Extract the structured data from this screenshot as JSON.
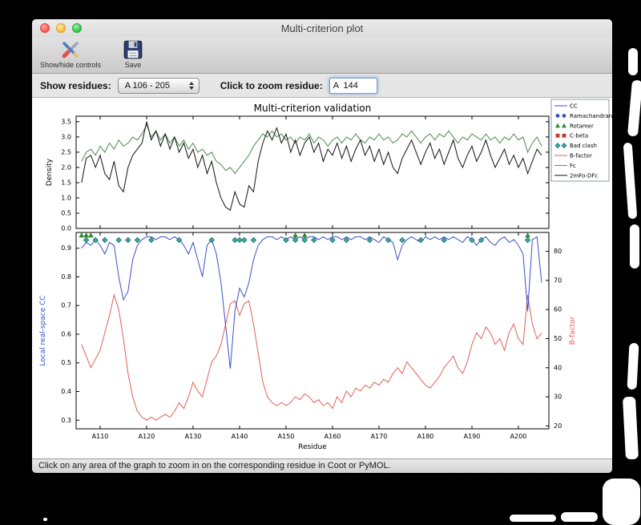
{
  "window": {
    "title": "Multi-criterion plot"
  },
  "toolbar": {
    "show_hide_label": "Show/hide controls",
    "save_label": "Save"
  },
  "controls": {
    "show_residues_label": "Show residues:",
    "residue_range_value": "A 106 - 205",
    "zoom_residue_label": "Click to zoom residue:",
    "zoom_residue_value": "A  144"
  },
  "status_bar": {
    "text": "Click on any area of the graph to zoom in on the corresponding residue in Coot or PyMOL."
  },
  "chart_data": {
    "type": "line",
    "title": "Multi-criterion validation",
    "xlabel": "Residue",
    "x_start": 106,
    "x_end": 205,
    "x_tick_values": [
      110,
      120,
      130,
      140,
      150,
      160,
      170,
      180,
      190,
      200
    ],
    "x_tick_labels": [
      "A110",
      "A120",
      "A130",
      "A140",
      "A150",
      "A160",
      "A170",
      "A180",
      "A190",
      "A200"
    ],
    "top_plot": {
      "ylabel": "Density",
      "ylim": [
        0,
        3.68
      ],
      "yticks": [
        0.0,
        0.5,
        1.0,
        1.5,
        2.0,
        2.5,
        3.0,
        3.5
      ],
      "series": [
        {
          "name": "Fc",
          "color": "#4a8c4a",
          "values": [
            2.2,
            2.5,
            2.6,
            2.4,
            2.7,
            2.5,
            2.8,
            2.6,
            2.9,
            2.7,
            2.8,
            3.0,
            2.9,
            3.1,
            3.4,
            3.0,
            3.2,
            2.9,
            3.1,
            2.8,
            3.0,
            2.7,
            2.9,
            2.6,
            2.8,
            2.5,
            2.6,
            2.4,
            2.5,
            2.2,
            2.1,
            1.9,
            2.0,
            1.8,
            2.0,
            2.2,
            2.4,
            2.7,
            2.9,
            3.1,
            3.0,
            3.2,
            3.0,
            3.1,
            2.9,
            3.0,
            2.8,
            3.0,
            2.9,
            3.1,
            2.8,
            3.0,
            2.9,
            2.7,
            2.9,
            3.0,
            2.8,
            3.0,
            2.9,
            3.1,
            2.9,
            2.8,
            3.0,
            2.9,
            3.1,
            2.9,
            3.0,
            2.8,
            2.9,
            3.1,
            3.0,
            3.2,
            3.0,
            2.8,
            3.0,
            3.1,
            2.9,
            3.1,
            3.0,
            3.2,
            3.0,
            2.8,
            3.0,
            2.9,
            3.1,
            3.0,
            2.9,
            3.1,
            2.9,
            3.0,
            2.8,
            3.0,
            2.9,
            3.1,
            2.9,
            3.0,
            2.5,
            2.8,
            3.0,
            2.7
          ]
        },
        {
          "name": "2mFo-DFc",
          "color": "#111111",
          "values": [
            1.5,
            2.3,
            2.4,
            2.0,
            2.4,
            1.8,
            1.6,
            2.2,
            1.4,
            1.2,
            2.0,
            2.4,
            2.6,
            2.8,
            3.5,
            2.9,
            3.2,
            2.7,
            3.1,
            2.6,
            3.0,
            2.5,
            2.8,
            2.3,
            2.6,
            2.0,
            2.4,
            1.8,
            2.2,
            1.5,
            1.0,
            0.7,
            0.6,
            1.2,
            0.8,
            0.7,
            1.4,
            1.2,
            2.2,
            2.8,
            3.2,
            2.9,
            3.3,
            2.8,
            3.1,
            2.5,
            2.9,
            2.4,
            2.8,
            3.0,
            2.5,
            2.8,
            2.2,
            2.6,
            2.4,
            2.8,
            2.3,
            2.7,
            2.2,
            2.6,
            2.9,
            2.4,
            2.7,
            2.2,
            2.6,
            2.1,
            2.5,
            2.0,
            1.8,
            2.3,
            2.6,
            2.9,
            2.5,
            2.1,
            2.5,
            2.8,
            2.3,
            2.6,
            2.1,
            2.5,
            2.9,
            2.3,
            2.0,
            2.4,
            2.7,
            2.2,
            2.5,
            2.9,
            2.4,
            2.0,
            2.3,
            2.6,
            2.1,
            2.4,
            2.0,
            2.3,
            1.8,
            2.2,
            2.6,
            2.4
          ]
        }
      ]
    },
    "bottom_plot": {
      "left_ylabel": "Local real-space CC",
      "cc_color": "#3a50c8",
      "left_ylim": [
        0.27,
        0.955
      ],
      "left_yticks": [
        0.3,
        0.4,
        0.5,
        0.6,
        0.7,
        0.8,
        0.9
      ],
      "right_ylabel": "B-factor",
      "bfactor_color": "#e06055",
      "right_ylim": [
        19,
        86.5
      ],
      "right_yticks": [
        20,
        30,
        40,
        50,
        60,
        70,
        80
      ],
      "cc_values": [
        0.9,
        0.92,
        0.91,
        0.93,
        0.91,
        0.88,
        0.92,
        0.91,
        0.8,
        0.72,
        0.75,
        0.86,
        0.91,
        0.93,
        0.94,
        0.94,
        0.93,
        0.94,
        0.94,
        0.93,
        0.94,
        0.93,
        0.91,
        0.88,
        0.92,
        0.86,
        0.8,
        0.91,
        0.93,
        0.88,
        0.78,
        0.63,
        0.48,
        0.68,
        0.76,
        0.73,
        0.78,
        0.86,
        0.91,
        0.93,
        0.94,
        0.94,
        0.93,
        0.94,
        0.93,
        0.94,
        0.93,
        0.94,
        0.93,
        0.94,
        0.94,
        0.93,
        0.94,
        0.93,
        0.94,
        0.94,
        0.93,
        0.94,
        0.93,
        0.94,
        0.94,
        0.93,
        0.94,
        0.93,
        0.92,
        0.94,
        0.93,
        0.92,
        0.86,
        0.91,
        0.93,
        0.94,
        0.93,
        0.92,
        0.94,
        0.93,
        0.94,
        0.93,
        0.94,
        0.93,
        0.94,
        0.93,
        0.92,
        0.94,
        0.93,
        0.91,
        0.93,
        0.94,
        0.92,
        0.91,
        0.93,
        0.94,
        0.92,
        0.93,
        0.91,
        0.88,
        0.68,
        0.93,
        0.94,
        0.78
      ],
      "bfactor_values": [
        48,
        44,
        40,
        43,
        46,
        52,
        58,
        65,
        60,
        50,
        38,
        30,
        25,
        23,
        22,
        23,
        22,
        23,
        24,
        23,
        25,
        28,
        26,
        30,
        35,
        32,
        30,
        36,
        42,
        44,
        48,
        55,
        62,
        63,
        58,
        62,
        63,
        55,
        45,
        35,
        30,
        28,
        27,
        28,
        27,
        28,
        30,
        29,
        31,
        30,
        28,
        29,
        27,
        28,
        26,
        30,
        28,
        32,
        30,
        33,
        32,
        34,
        33,
        35,
        34,
        36,
        35,
        38,
        40,
        38,
        42,
        40,
        38,
        36,
        34,
        33,
        35,
        37,
        40,
        42,
        44,
        40,
        38,
        42,
        48,
        52,
        50,
        54,
        52,
        48,
        50,
        46,
        52,
        55,
        50,
        48,
        65,
        55,
        50,
        52
      ]
    },
    "markers": {
      "rotamer": {
        "color": "#2e8b2e",
        "residues": [
          106,
          107,
          108,
          152,
          154,
          202
        ]
      },
      "bad_clash": {
        "color": "#40a8a0",
        "residues": [
          107,
          109,
          111,
          114,
          116,
          118,
          121,
          127,
          134,
          139,
          140,
          141,
          143,
          150,
          152,
          154,
          156,
          160,
          163,
          168,
          172,
          175,
          179,
          184,
          190,
          192,
          202
        ]
      },
      "ramachandran": {
        "color": "#3a50c8",
        "residues": []
      },
      "cbeta": {
        "color": "#cc3333",
        "residues": []
      }
    },
    "legend": [
      {
        "label": "CC",
        "type": "line",
        "color": "#3a50c8"
      },
      {
        "label": "Ramachandran",
        "type": "circle",
        "color": "#3a50c8"
      },
      {
        "label": "Rotamer",
        "type": "triangle",
        "color": "#2e8b2e"
      },
      {
        "label": "C-beta",
        "type": "square",
        "color": "#cc3333"
      },
      {
        "label": "Bad clash",
        "type": "diamond",
        "color": "#40a8a0"
      },
      {
        "label": "B-factor",
        "type": "line",
        "color": "#e06055"
      },
      {
        "label": "Fc",
        "type": "line",
        "color": "#4a8c4a"
      },
      {
        "label": "2mFo-DFc",
        "type": "line",
        "color": "#111111"
      }
    ]
  }
}
